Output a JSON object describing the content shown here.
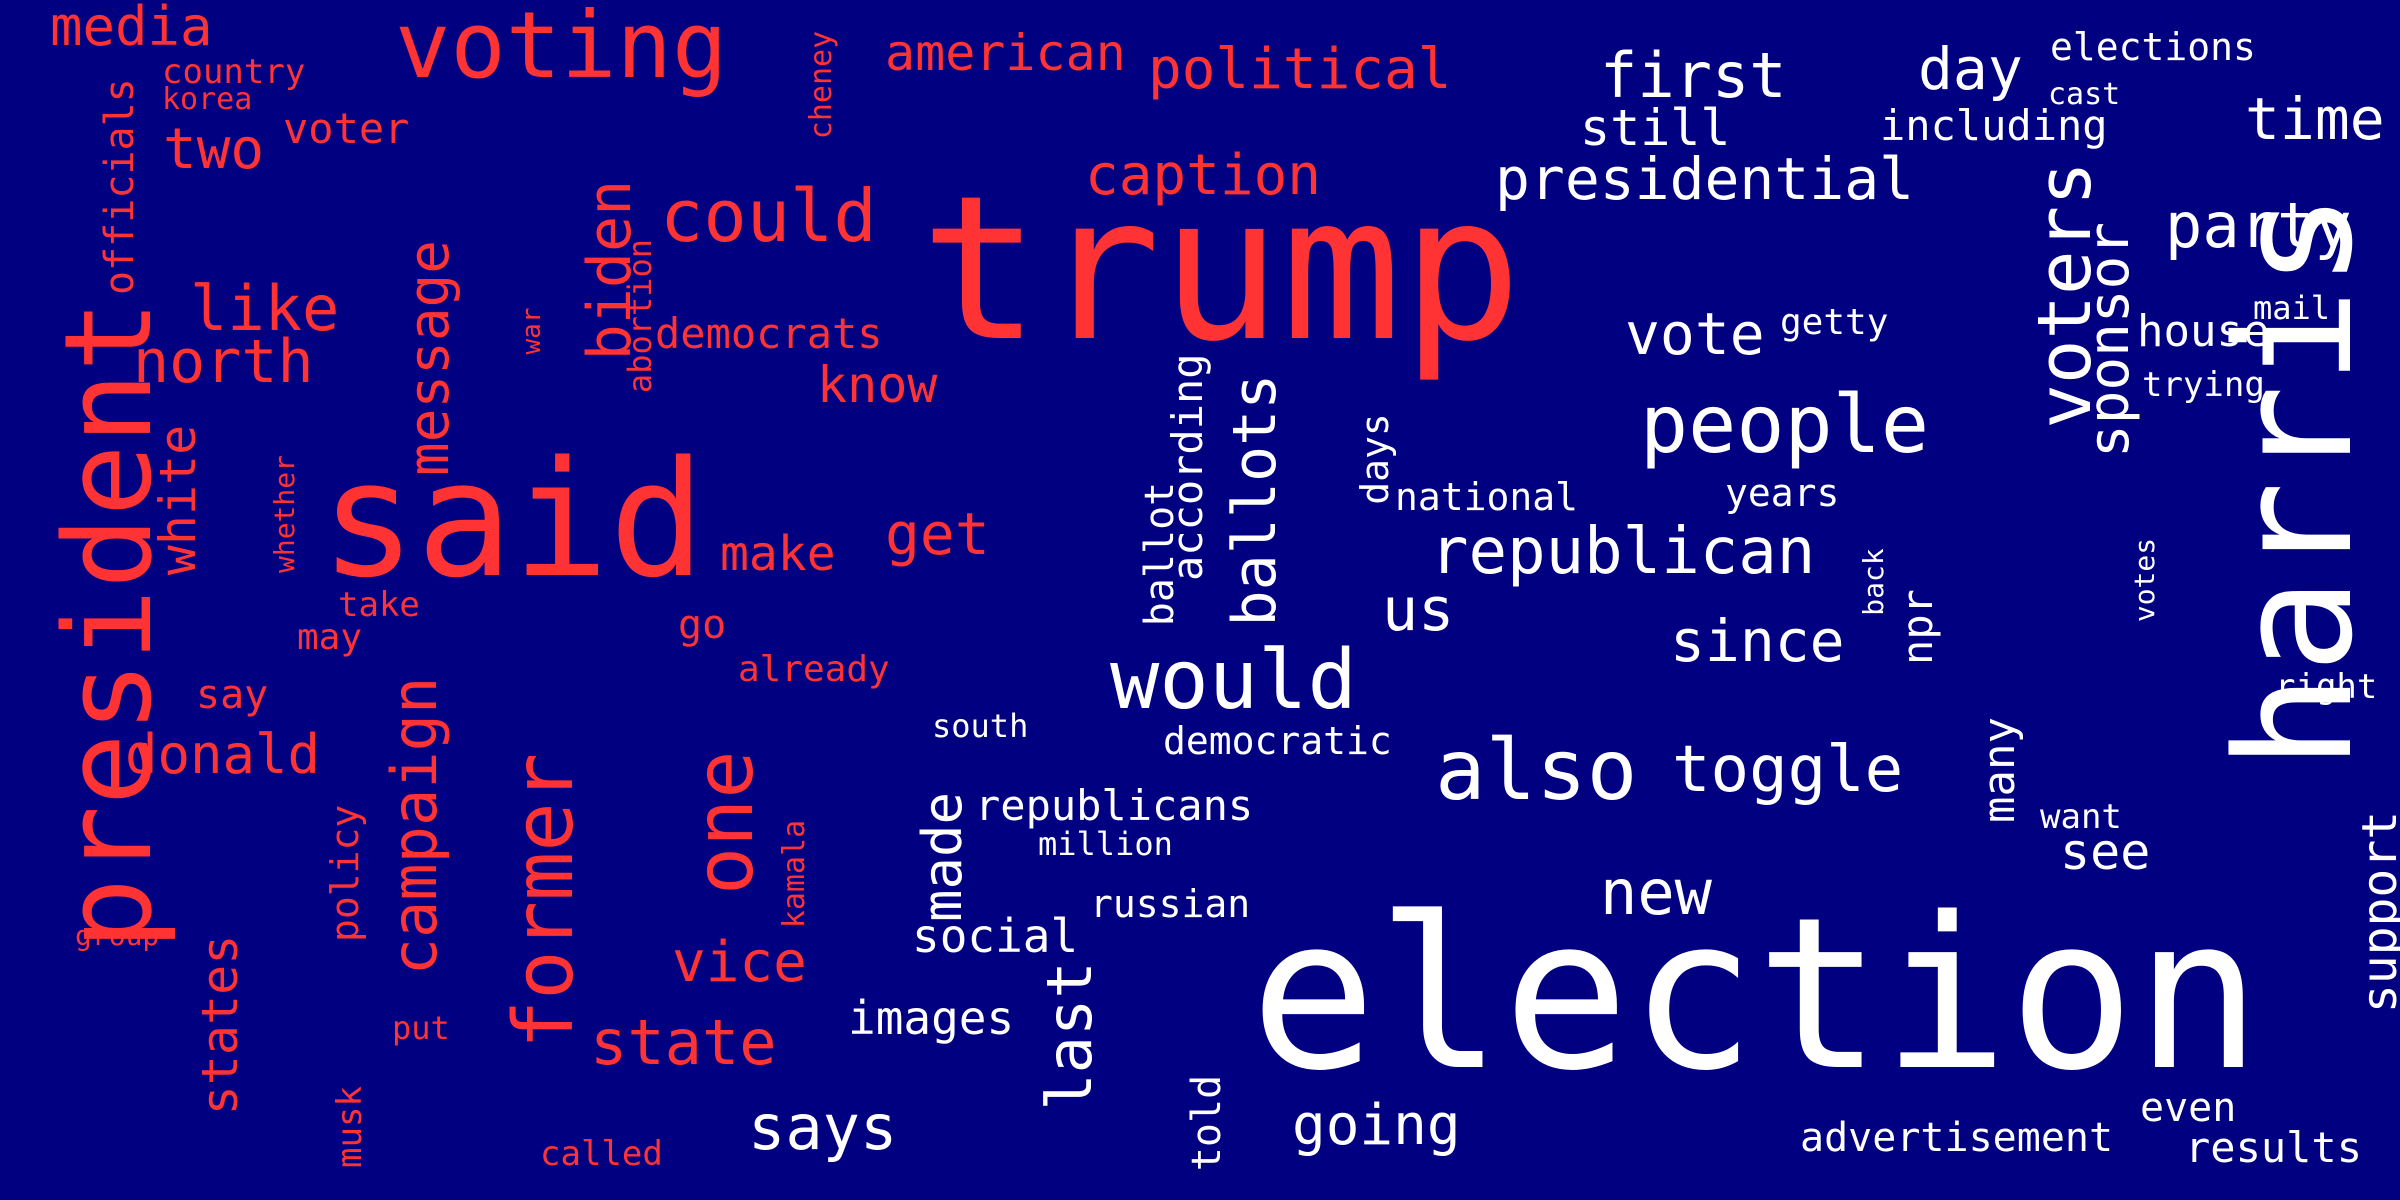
{
  "palette": {
    "background": "#000080",
    "red": "#ff3333",
    "white": "#ffffff"
  },
  "words": {
    "trump": "trump",
    "election": "election",
    "said": "said",
    "harris": "harris",
    "president": "president",
    "voting": "voting",
    "could": "could",
    "would": "would",
    "also": "also",
    "people": "people",
    "voters": "voters",
    "republican": "republican",
    "former": "former",
    "one": "one",
    "campaign": "campaign",
    "message": "message",
    "biden": "biden",
    "caption": "caption",
    "political": "political",
    "presidential": "presidential",
    "first": "first",
    "day": "day",
    "time": "time",
    "party": "party",
    "sponsor": "sponsor",
    "toggle": "toggle",
    "new": "new",
    "state": "state",
    "ballots": "ballots",
    "says": "says",
    "going": "going",
    "last": "last",
    "like": "like",
    "north": "north",
    "donald": "donald",
    "media": "media",
    "two": "two",
    "white": "white",
    "states": "states",
    "vice": "vice",
    "get": "get",
    "know": "know",
    "make": "make",
    "us": "us",
    "since": "since",
    "vote": "vote",
    "made": "made",
    "images": "images",
    "social": "social",
    "support": "support",
    "see": "see",
    "many": "many",
    "results": "results",
    "even": "even",
    "advertisement": "advertisement",
    "still": "still",
    "house": "house",
    "american": "american",
    "democrats": "democrats",
    "official": "officials",
    "country": "country",
    "korea": "korea",
    "voter": "voter",
    "cheney": "cheney",
    "abortion": "abortion",
    "war": "war",
    "whether": "whether",
    "take": "take",
    "may": "may",
    "say": "say",
    "go": "go",
    "already": "already",
    "policy": "policy",
    "kamala": "kamala",
    "group": "group",
    "put": "put",
    "musk": "musk",
    "called": "called",
    "told": "told",
    "russian": "russian",
    "million": "million",
    "republicans": "republicans",
    "south": "south",
    "democratic": "democratic",
    "national": "national",
    "years": "years",
    "days": "days",
    "ballot": "ballot",
    "according": "according",
    "npr": "npr",
    "back": "back",
    "getty": "getty",
    "elections": "elections",
    "cast": "cast",
    "including": "including",
    "mail": "mail",
    "trying": "trying",
    "votes": "votes",
    "right": "right",
    "want": "want"
  }
}
